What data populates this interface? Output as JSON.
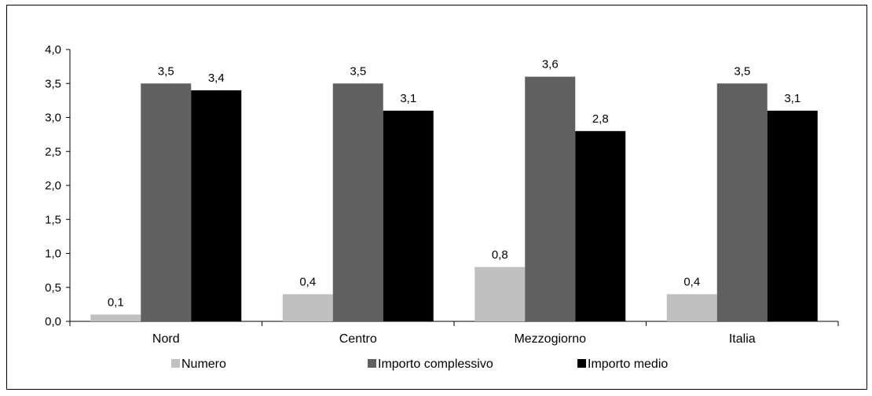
{
  "chart_data": {
    "type": "bar",
    "categories": [
      "Nord",
      "Centro",
      "Mezzogiorno",
      "Italia"
    ],
    "series": [
      {
        "name": "Numero",
        "values": [
          0.1,
          0.4,
          0.8,
          0.4
        ],
        "labels": [
          "0,1",
          "0,4",
          "0,8",
          "0,4"
        ],
        "color": "#c0c0c0"
      },
      {
        "name": "Importo complessivo",
        "values": [
          3.5,
          3.5,
          3.6,
          3.5
        ],
        "labels": [
          "3,5",
          "3,5",
          "3,6",
          "3,5"
        ],
        "color": "#606060"
      },
      {
        "name": "Importo medio",
        "values": [
          3.4,
          3.1,
          2.8,
          3.1
        ],
        "labels": [
          "3,4",
          "3,1",
          "2,8",
          "3,1"
        ],
        "color": "#000000"
      }
    ],
    "ylim": [
      0,
      4
    ],
    "yticks": [
      "0,0",
      "0,5",
      "1,0",
      "1,5",
      "2,0",
      "2,5",
      "3,0",
      "3,5",
      "4,0"
    ],
    "grid": false,
    "legend": "bottom",
    "title": "",
    "xlabel": "",
    "ylabel": ""
  }
}
